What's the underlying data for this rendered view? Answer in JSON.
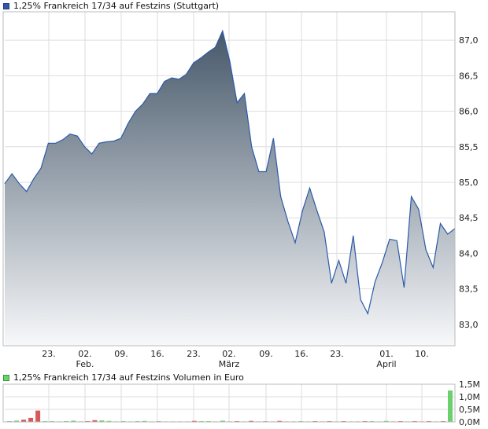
{
  "colors": {
    "price_line": "#2c5aa8",
    "area_top": "#46586a",
    "area_bottom": "#f7f8fa",
    "grid": "#dddddd",
    "vol_up": "#6cd16c",
    "vol_down": "#d65a5a",
    "vol_neutral": "#9aa5b5"
  },
  "chart_data": [
    {
      "type": "area",
      "title": "1,25% Frankreich 17/34 auf Festzins (Stuttgart)",
      "ylim": [
        82.7,
        87.4
      ],
      "y_ticks": [
        "83,0",
        "83,5",
        "84,0",
        "84,5",
        "85,0",
        "85,5",
        "86,0",
        "86,5",
        "87,0"
      ],
      "x_ticks": [
        {
          "label": "23.",
          "month": ""
        },
        {
          "label": "02.",
          "month": "Feb."
        },
        {
          "label": "09.",
          "month": ""
        },
        {
          "label": "16.",
          "month": ""
        },
        {
          "label": "23.",
          "month": ""
        },
        {
          "label": "02.",
          "month": "März"
        },
        {
          "label": "09.",
          "month": ""
        },
        {
          "label": "16.",
          "month": ""
        },
        {
          "label": "23.",
          "month": ""
        },
        {
          "label": "01.",
          "month": "April"
        },
        {
          "label": "10.",
          "month": ""
        }
      ],
      "grid": true,
      "series": [
        {
          "values": [
            84.98,
            85.12,
            84.98,
            84.87,
            85.05,
            85.2,
            85.55,
            85.55,
            85.6,
            85.68,
            85.65,
            85.5,
            85.4,
            85.55,
            85.57,
            85.58,
            85.62,
            85.83,
            86.0,
            86.1,
            86.25,
            86.25,
            86.42,
            86.47,
            86.45,
            86.52,
            86.68,
            86.75,
            86.83,
            86.9,
            87.13,
            86.7,
            86.12,
            86.25,
            85.5,
            85.15,
            85.15,
            85.62,
            84.8,
            84.45,
            84.15,
            84.6,
            84.92,
            84.6,
            84.3,
            83.58,
            83.9,
            83.58,
            84.25,
            83.35,
            83.15,
            83.6,
            83.87,
            84.2,
            84.18,
            83.52,
            84.8,
            84.62,
            84.05,
            83.8,
            84.42,
            84.27,
            84.35
          ]
        }
      ]
    },
    {
      "type": "bar",
      "title": "1,25% Frankreich 17/34 auf Festzins Volumen in Euro",
      "ylim": [
        0,
        1.5
      ],
      "y_ticks": [
        "1,5M",
        "1,0M",
        "0,5M",
        "0,0M"
      ],
      "series": [
        {
          "values": [
            0.03,
            0.05,
            0.09,
            0.16,
            0.45,
            0.03,
            0.03,
            0.02,
            0.03,
            0.05,
            0.02,
            0.03,
            0.07,
            0.06,
            0.04,
            0.02,
            0.03,
            0.02,
            0.03,
            0.04,
            0.02,
            0.03,
            0.02,
            0.02,
            0.02,
            0.02,
            0.04,
            0.03,
            0.03,
            0.02,
            0.05,
            0.02,
            0.03,
            0.02,
            0.04,
            0.02,
            0.03,
            0.02,
            0.04,
            0.02,
            0.02,
            0.03,
            0.02,
            0.03,
            0.02,
            0.03,
            0.02,
            0.03,
            0.02,
            0.02,
            0.03,
            0.03,
            0.02,
            0.04,
            0.02,
            0.03,
            0.02,
            0.03,
            0.02,
            0.03,
            0.02,
            0.03,
            1.25
          ],
          "direction": [
            0,
            1,
            -1,
            -1,
            -1,
            1,
            1,
            0,
            1,
            1,
            -1,
            -1,
            -1,
            1,
            1,
            1,
            1,
            1,
            1,
            1,
            1,
            0,
            1,
            1,
            -1,
            1,
            -1,
            1,
            1,
            1,
            1,
            -1,
            -1,
            1,
            -1,
            -1,
            0,
            1,
            -1,
            -1,
            -1,
            1,
            1,
            -1,
            -1,
            -1,
            1,
            -1,
            1,
            -1,
            -1,
            1,
            1,
            1,
            -1,
            -1,
            1,
            -1,
            -1,
            -1,
            1,
            -1,
            1
          ]
        }
      ]
    }
  ]
}
